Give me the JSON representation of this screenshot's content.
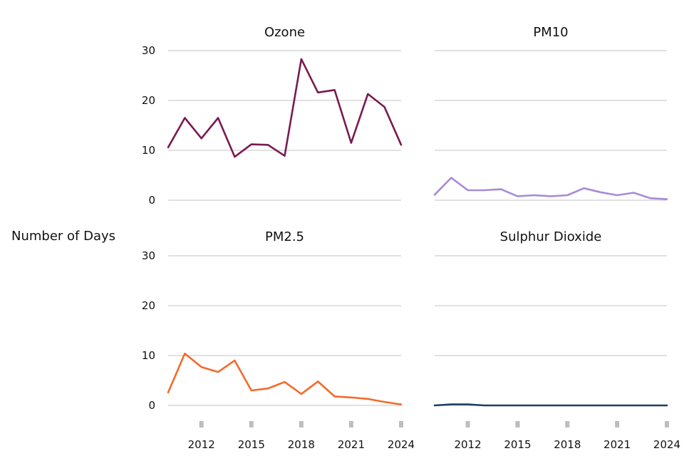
{
  "chart_data": {
    "type": "line",
    "ylabel": "Number of Days",
    "x": [
      2010,
      2011,
      2012,
      2013,
      2014,
      2015,
      2016,
      2017,
      2018,
      2019,
      2020,
      2021,
      2022,
      2023,
      2024
    ],
    "x_ticks": [
      "2012",
      "2015",
      "2018",
      "2021",
      "2024"
    ],
    "ylim": [
      0,
      30
    ],
    "y_ticks": [
      "0",
      "10",
      "20",
      "30"
    ],
    "grid": true,
    "panels": [
      {
        "title": "Ozone",
        "color": "#7a1a52",
        "values": [
          10.6,
          16.5,
          12.4,
          16.5,
          8.7,
          11.2,
          11.1,
          8.9,
          28.3,
          21.6,
          22.1,
          11.5,
          21.3,
          18.7,
          11.1
        ]
      },
      {
        "title": "PM10",
        "color": "#a78bd8",
        "values": [
          1.1,
          4.5,
          2.0,
          2.0,
          2.2,
          0.8,
          1.0,
          0.8,
          1.0,
          2.4,
          1.6,
          1.0,
          1.5,
          0.4,
          0.2
        ]
      },
      {
        "title": "PM2.5",
        "color": "#f26b2b",
        "values": [
          2.6,
          10.4,
          7.7,
          6.7,
          9.0,
          3.0,
          3.4,
          4.7,
          2.3,
          4.8,
          1.8,
          1.6,
          1.3,
          0.7,
          0.2
        ]
      },
      {
        "title": "Sulphur Dioxide",
        "color": "#1c3f66",
        "values": [
          0.0,
          0.2,
          0.2,
          0.0,
          0.0,
          0.0,
          0.0,
          0.0,
          0.0,
          0.0,
          0.0,
          0.0,
          0.0,
          0.0,
          0.0
        ]
      }
    ]
  }
}
